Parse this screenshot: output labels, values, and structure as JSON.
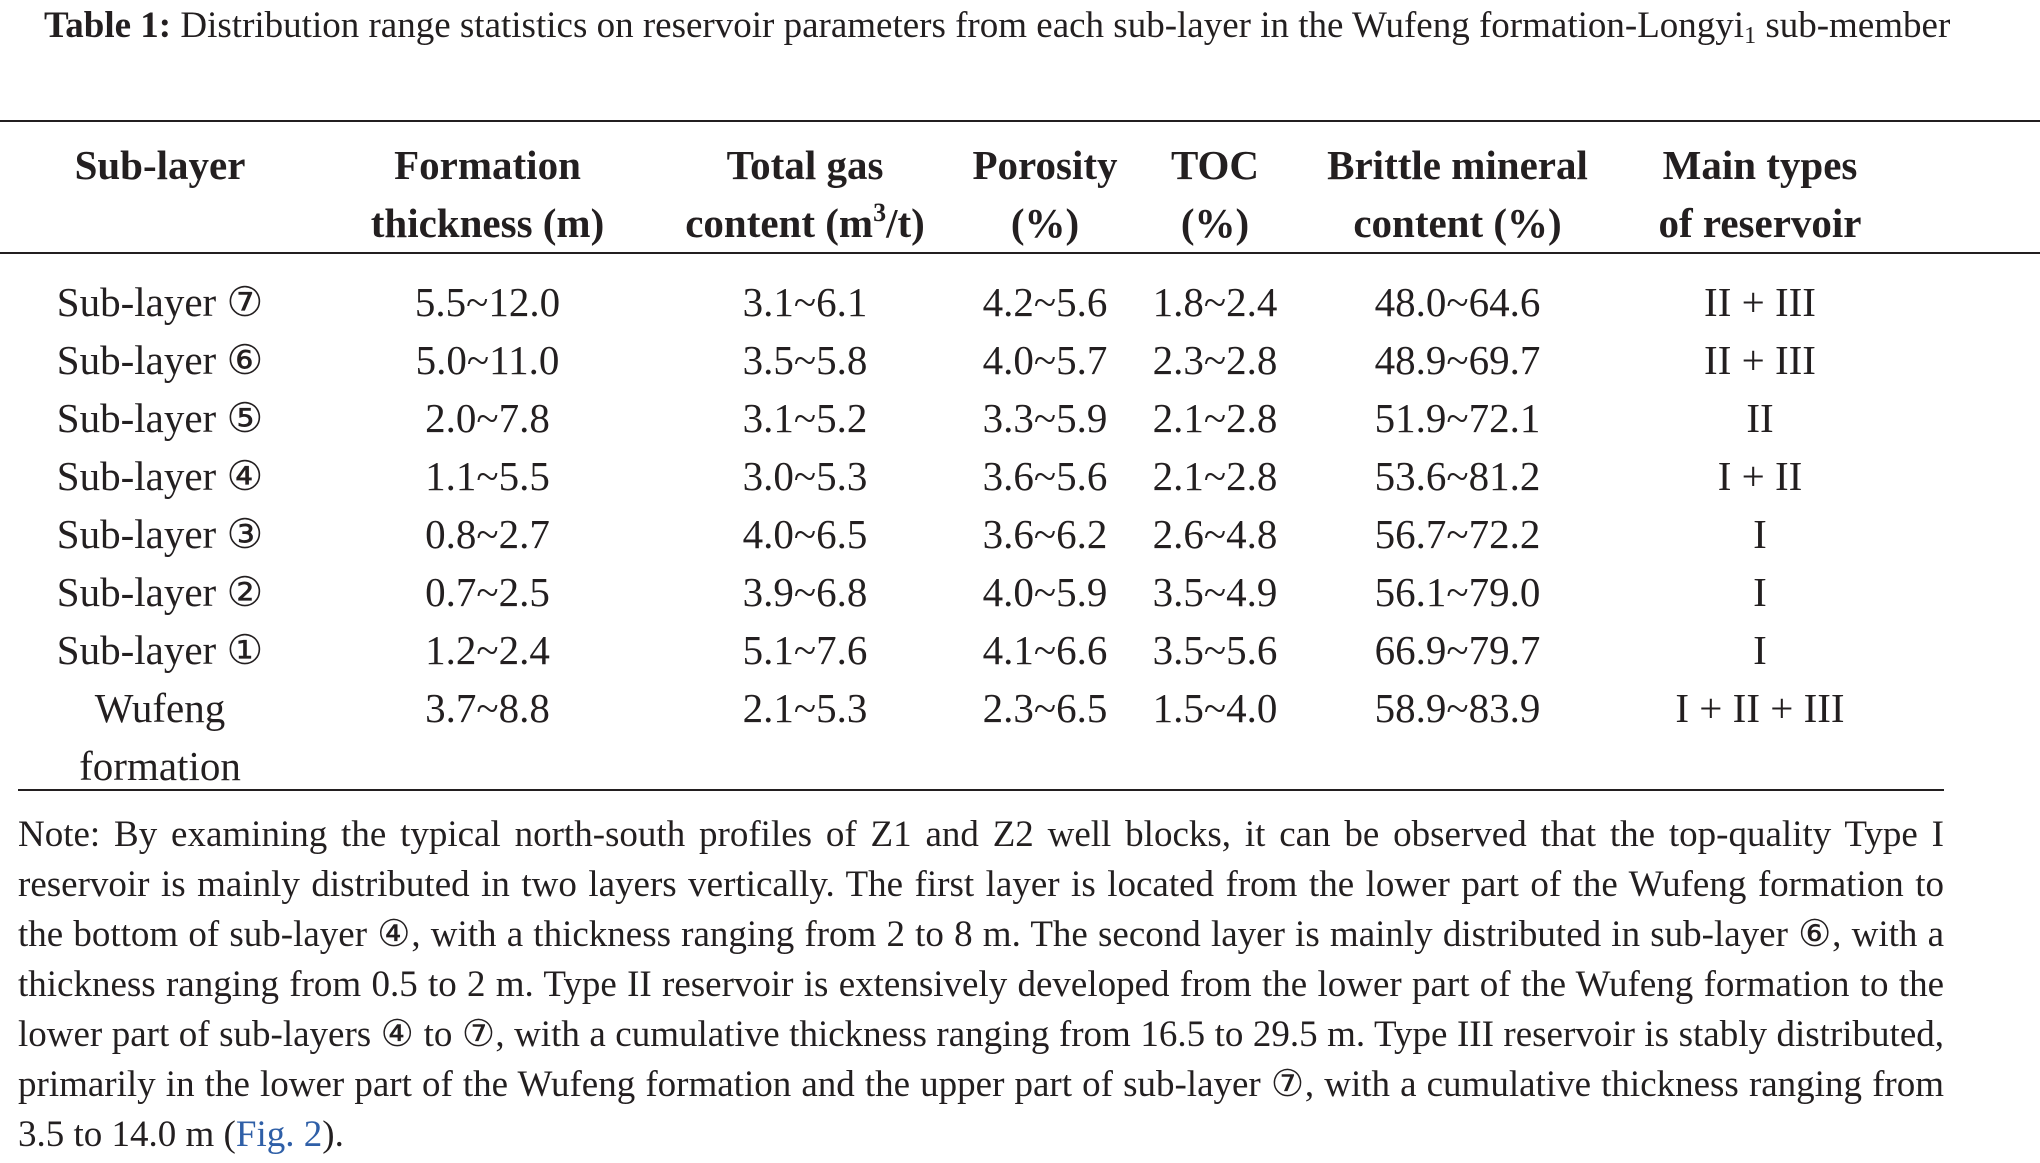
{
  "caption": {
    "label": "Table 1:",
    "text_main": "Distribution range statistics on reservoir parameters from each sub-layer in the Wufeng formation-Longyi",
    "text_sub": "1",
    "text_tail": "sub-member"
  },
  "table": {
    "headers": {
      "col1": "Sub-layer",
      "col2_l1": "Formation",
      "col2_l2": "thickness (m)",
      "col3_l1": "Total gas",
      "col3_l2_pre": "content (m",
      "col3_l2_sup": "3",
      "col3_l2_post": "/t)",
      "col4_l1": "Porosity",
      "col4_l2": "(%)",
      "col5": "TOC (%)",
      "col6_l1": "Brittle mineral",
      "col6_l2": "content (%)",
      "col7_l1": "Main types",
      "col7_l2": "of reservoir"
    },
    "rows": [
      {
        "sublayer": "Sub-layer ⑦",
        "thickness": "5.5~12.0",
        "gas": "3.1~6.1",
        "porosity": "4.2~5.6",
        "toc": "1.8~2.4",
        "brittle": "48.0~64.6",
        "types": "II + III"
      },
      {
        "sublayer": "Sub-layer ⑥",
        "thickness": "5.0~11.0",
        "gas": "3.5~5.8",
        "porosity": "4.0~5.7",
        "toc": "2.3~2.8",
        "brittle": "48.9~69.7",
        "types": "II + III"
      },
      {
        "sublayer": "Sub-layer ⑤",
        "thickness": "2.0~7.8",
        "gas": "3.1~5.2",
        "porosity": "3.3~5.9",
        "toc": "2.1~2.8",
        "brittle": "51.9~72.1",
        "types": "II"
      },
      {
        "sublayer": "Sub-layer ④",
        "thickness": "1.1~5.5",
        "gas": "3.0~5.3",
        "porosity": "3.6~5.6",
        "toc": "2.1~2.8",
        "brittle": "53.6~81.2",
        "types": "I + II"
      },
      {
        "sublayer": "Sub-layer ③",
        "thickness": "0.8~2.7",
        "gas": "4.0~6.5",
        "porosity": "3.6~6.2",
        "toc": "2.6~4.8",
        "brittle": "56.7~72.2",
        "types": "I"
      },
      {
        "sublayer": "Sub-layer ②",
        "thickness": "0.7~2.5",
        "gas": "3.9~6.8",
        "porosity": "4.0~5.9",
        "toc": "3.5~4.9",
        "brittle": "56.1~79.0",
        "types": "I"
      },
      {
        "sublayer": "Sub-layer ①",
        "thickness": "1.2~2.4",
        "gas": "5.1~7.6",
        "porosity": "4.1~6.6",
        "toc": "3.5~5.6",
        "brittle": "66.9~79.7",
        "types": "I"
      },
      {
        "sublayer_l1": "Wufeng",
        "sublayer_l2": "formation",
        "thickness": "3.7~8.8",
        "gas": "2.1~5.3",
        "porosity": "2.3~6.5",
        "toc": "1.5~4.0",
        "brittle": "58.9~83.9",
        "types": "I + II + III"
      }
    ]
  },
  "note": {
    "text": "Note: By examining the typical north-south profiles of Z1 and Z2 well blocks, it can be observed that the top-quality Type I reservoir is mainly distributed in two layers vertically. The first layer is located from the lower part of the Wufeng formation to the bottom of sub-layer ④, with a thickness ranging from 2 to 8 m. The second layer is mainly distributed in sub-layer ⑥, with a thickness ranging from 0.5 to 2 m. Type II reservoir is extensively developed from the lower part of the Wufeng formation to the lower part of sub-layers ④ to ⑦, with a cumulative thickness ranging from 16.5 to 29.5 m. Type III reservoir is stably distributed, primarily in the lower part of the Wufeng formation and the upper part of sub-layer ⑦, with a cumulative thickness ranging from 3.5 to 14.0 m (",
    "link_text": "Fig. 2",
    "tail": ").",
    "link_color": "#2f5fa7"
  }
}
